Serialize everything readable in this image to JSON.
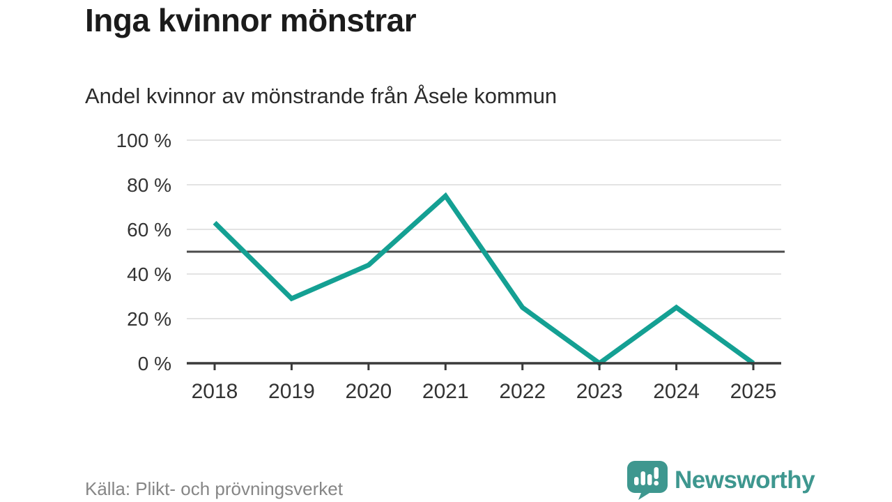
{
  "header": {
    "title": "Inga kvinnor mönstrar",
    "subtitle": "Andel kvinnor av mönstrande från Åsele kommun"
  },
  "footer": {
    "source": "Källa: Plikt- och prövningsverket",
    "brand": "Newsworthy"
  },
  "colors": {
    "line": "#14a093",
    "reference_line": "#4b4b4b",
    "grid": "#e3e3e3",
    "axis": "#3a3a3a",
    "tick_label": "#333333",
    "muted": "#868686",
    "brand_teal": "#3e978f"
  },
  "icons": {
    "logo": "newsworthy-speech-bubble-bar-chart-icon"
  },
  "chart_data": {
    "type": "line",
    "title": "Inga kvinnor mönstrar",
    "subtitle": "Andel kvinnor av mönstrande från Åsele kommun",
    "categories": [
      "2018",
      "2019",
      "2020",
      "2021",
      "2022",
      "2023",
      "2024",
      "2025"
    ],
    "series": [
      {
        "name": "Andel kvinnor av mönstrande",
        "values": [
          63,
          29,
          44,
          75,
          25,
          0,
          25,
          0
        ]
      }
    ],
    "ylim": [
      0,
      100
    ],
    "yticks": [
      0,
      20,
      40,
      60,
      80,
      100
    ],
    "ytick_suffix": " %",
    "reference_line": 50,
    "grid": true,
    "legend": false,
    "source": "Källa: Plikt- och prövningsverket"
  }
}
